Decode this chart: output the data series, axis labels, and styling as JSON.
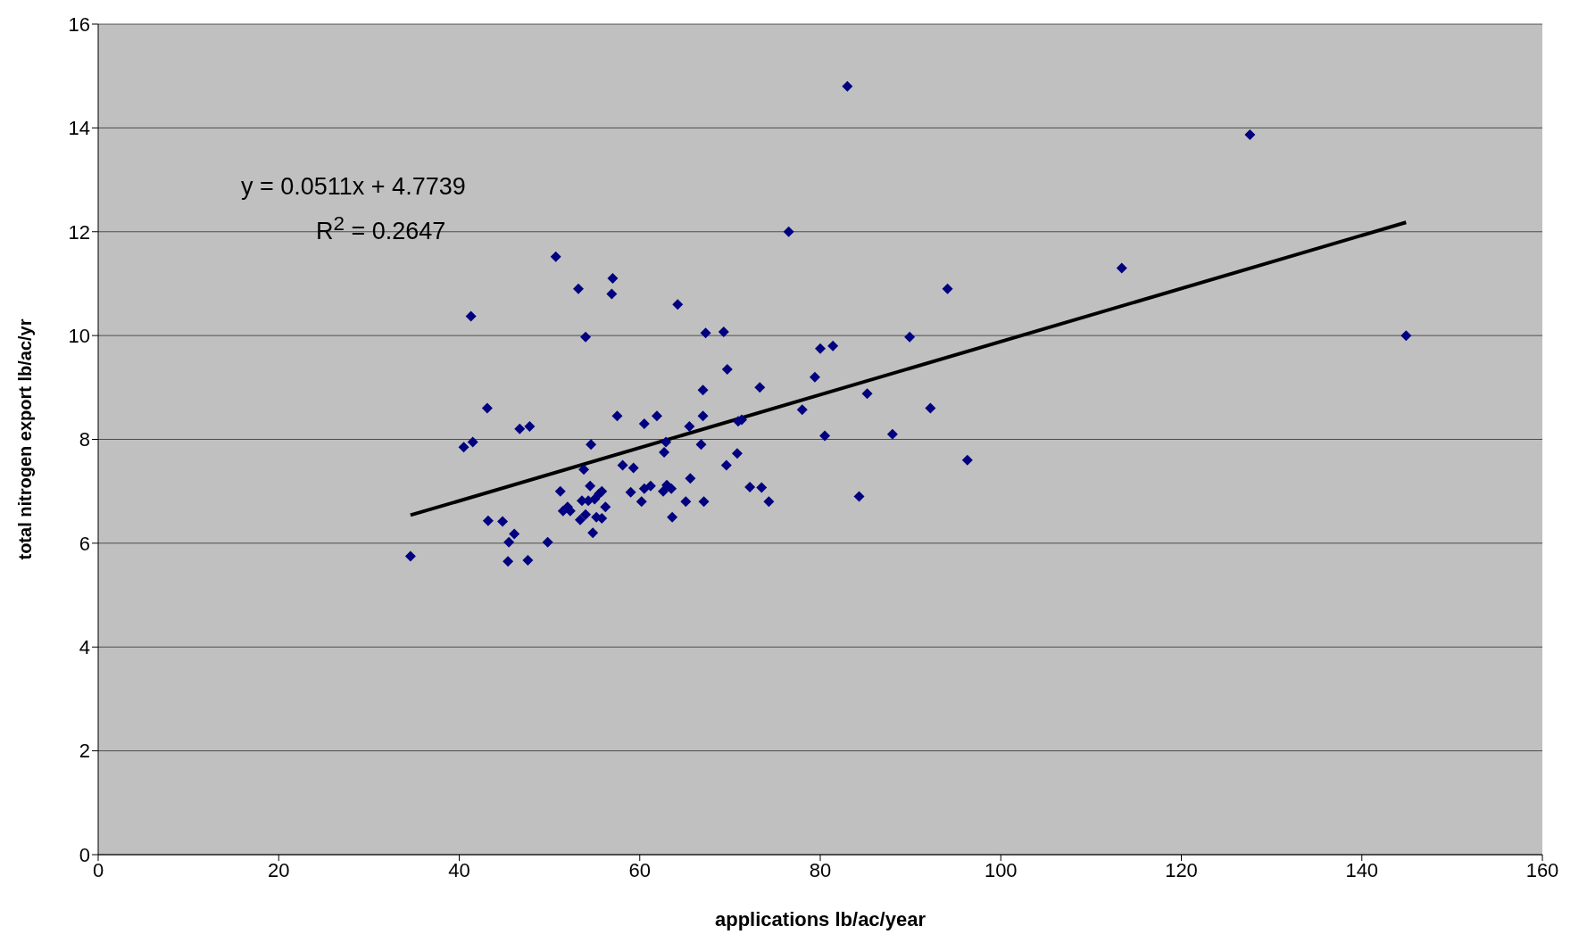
{
  "chart_data": {
    "type": "scatter",
    "xlabel": "applications lb/ac/year",
    "ylabel": "total nitrogen export lb/ac/yr",
    "xlim": [
      0,
      160
    ],
    "xticks": [
      0,
      20,
      40,
      60,
      80,
      100,
      120,
      140,
      160
    ],
    "ylim": [
      0,
      16
    ],
    "yticks": [
      0,
      2,
      4,
      6,
      8,
      10,
      12,
      14,
      16
    ],
    "grid": "y",
    "legend": false,
    "annotations": [
      "y = 0.0511x + 4.7739",
      "R$^{2}$ = 0.2647"
    ],
    "series": [
      {
        "color": "#000080",
        "marker": "diamond",
        "x": [
          34.6,
          40.5,
          41.3,
          41.5,
          43.1,
          43.2,
          44.8,
          45.4,
          45.5,
          46.1,
          46.7,
          47.6,
          47.8,
          49.8,
          50.7,
          51.2,
          51.5,
          52.0,
          52.3,
          53.2,
          53.4,
          53.6,
          53.8,
          54.0,
          54.0,
          54.3,
          54.5,
          54.6,
          54.8,
          55.0,
          55.2,
          55.5,
          55.8,
          55.8,
          56.2,
          56.9,
          57.0,
          57.5,
          58.1,
          59.0,
          59.3,
          60.2,
          60.5,
          60.5,
          61.2,
          61.9,
          62.6,
          62.7,
          62.9,
          63.0,
          63.5,
          63.6,
          64.2,
          65.1,
          65.5,
          65.6,
          66.8,
          67.0,
          67.0,
          67.1,
          67.3,
          69.3,
          69.6,
          69.7,
          70.8,
          70.9,
          71.3,
          72.2,
          73.3,
          73.5,
          74.3,
          76.5,
          78.0,
          79.4,
          80.0,
          80.5,
          81.4,
          83.0,
          84.3,
          85.2,
          88.0,
          89.9,
          92.2,
          94.1,
          96.3,
          113.4,
          127.6,
          144.9
        ],
        "values": [
          5.75,
          7.85,
          10.37,
          7.95,
          8.6,
          6.43,
          6.42,
          5.65,
          6.02,
          6.18,
          8.2,
          5.67,
          8.25,
          6.02,
          11.52,
          7.0,
          6.62,
          6.7,
          6.62,
          10.9,
          6.45,
          6.82,
          7.42,
          9.97,
          6.55,
          6.82,
          7.1,
          7.9,
          6.2,
          6.85,
          6.5,
          6.95,
          7.0,
          6.48,
          6.7,
          10.8,
          11.1,
          8.45,
          7.5,
          6.98,
          7.45,
          6.8,
          7.05,
          8.3,
          7.1,
          8.45,
          7.0,
          7.75,
          7.95,
          7.12,
          7.05,
          6.5,
          10.6,
          6.8,
          8.25,
          7.25,
          7.9,
          8.45,
          8.95,
          6.8,
          10.05,
          10.07,
          7.5,
          9.35,
          7.73,
          8.35,
          8.38,
          7.08,
          9.0,
          7.07,
          6.8,
          12.0,
          8.57,
          9.2,
          9.75,
          8.07,
          9.8,
          14.8,
          6.9,
          8.88,
          8.1,
          9.97,
          8.6,
          10.9,
          7.6,
          11.3,
          13.87,
          10.0
        ]
      },
      {
        "type": "line",
        "color": "#000000",
        "line_style": "solid",
        "marker": "none",
        "x": [
          34.6,
          144.9
        ],
        "values": [
          6.54,
          12.18
        ]
      }
    ]
  }
}
